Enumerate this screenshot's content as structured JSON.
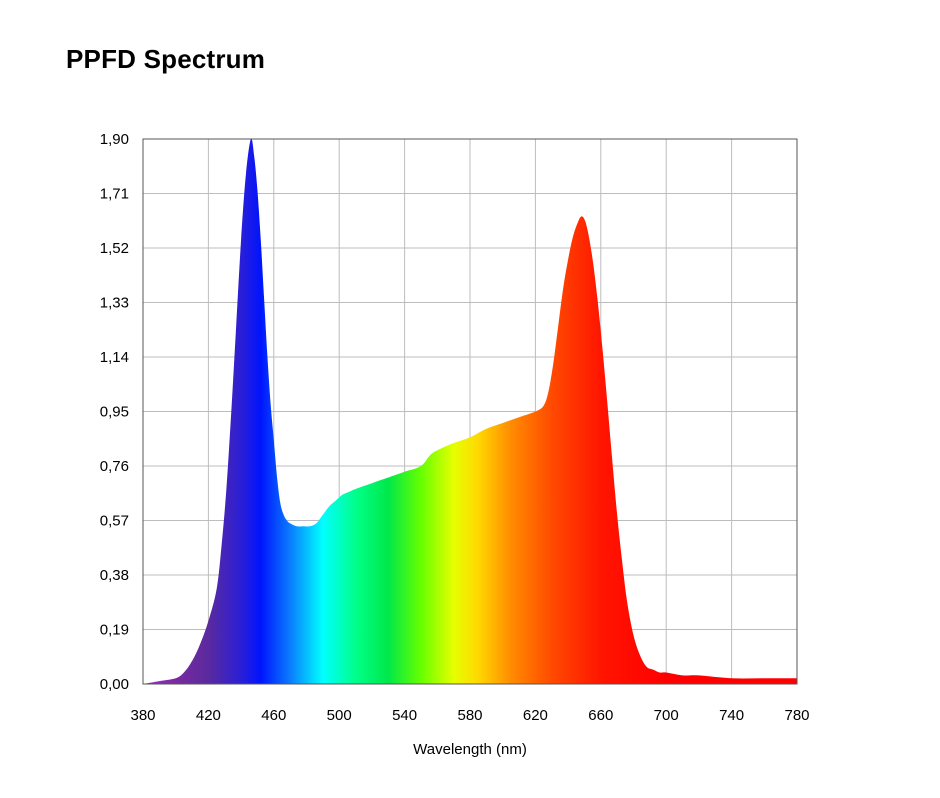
{
  "chart_data": {
    "type": "area",
    "title": "PPFD Spectrum",
    "xlabel": "Wavelength (nm)",
    "ylabel": "",
    "xlim": [
      380,
      780
    ],
    "ylim": [
      0,
      1.9
    ],
    "x_ticks": [
      380,
      420,
      460,
      500,
      540,
      580,
      620,
      660,
      700,
      740,
      780
    ],
    "x_tick_labels": [
      "380",
      "420",
      "460",
      "500",
      "540",
      "580",
      "620",
      "660",
      "700",
      "740",
      "780"
    ],
    "y_ticks": [
      0,
      0.19,
      0.38,
      0.57,
      0.76,
      0.95,
      1.14,
      1.33,
      1.52,
      1.71,
      1.9
    ],
    "y_tick_labels": [
      "0,00",
      "0,19",
      "0,38",
      "0,57",
      "0,76",
      "0,95",
      "1,14",
      "1,33",
      "1,52",
      "1,71",
      "1,90"
    ],
    "grid": true,
    "fill": "visible-spectrum-gradient",
    "series": [
      {
        "x": [
          380,
          390,
          400,
          405,
          410,
          415,
          420,
          425,
          428,
          431,
          434,
          437,
          440,
          443,
          446,
          448,
          450,
          452,
          454,
          456,
          458,
          460,
          462,
          464,
          466,
          468,
          470,
          474,
          478,
          482,
          486,
          490,
          494,
          498,
          502,
          506,
          510,
          520,
          530,
          540,
          550,
          556,
          562,
          570,
          580,
          590,
          600,
          610,
          620,
          625,
          628,
          631,
          634,
          637,
          640,
          643,
          646,
          648,
          650,
          652,
          655,
          658,
          661,
          664,
          667,
          670,
          673,
          676,
          680,
          684,
          688,
          692,
          696,
          700,
          710,
          720,
          740,
          760,
          780
        ],
        "y": [
          0.0,
          0.01,
          0.02,
          0.04,
          0.08,
          0.14,
          0.22,
          0.33,
          0.48,
          0.68,
          0.95,
          1.25,
          1.55,
          1.78,
          1.9,
          1.84,
          1.72,
          1.55,
          1.35,
          1.15,
          0.98,
          0.85,
          0.72,
          0.63,
          0.59,
          0.57,
          0.56,
          0.55,
          0.55,
          0.55,
          0.56,
          0.59,
          0.62,
          0.64,
          0.66,
          0.67,
          0.68,
          0.7,
          0.72,
          0.74,
          0.76,
          0.8,
          0.82,
          0.84,
          0.86,
          0.89,
          0.91,
          0.93,
          0.95,
          0.97,
          1.02,
          1.12,
          1.25,
          1.38,
          1.48,
          1.56,
          1.61,
          1.63,
          1.62,
          1.58,
          1.48,
          1.34,
          1.17,
          0.98,
          0.78,
          0.59,
          0.43,
          0.29,
          0.17,
          0.1,
          0.06,
          0.05,
          0.04,
          0.04,
          0.03,
          0.03,
          0.02,
          0.02,
          0.02
        ]
      }
    ],
    "colors": {
      "grid": "#bdbdbd",
      "axis": "#555555",
      "spectrum_stops": [
        {
          "nm": 380,
          "color": "#9b30c8"
        },
        {
          "nm": 400,
          "color": "#7a2aa0"
        },
        {
          "nm": 420,
          "color": "#5a2a9e"
        },
        {
          "nm": 440,
          "color": "#2a1fd6"
        },
        {
          "nm": 452,
          "color": "#0014ff"
        },
        {
          "nm": 470,
          "color": "#0a7cff"
        },
        {
          "nm": 490,
          "color": "#00ffff"
        },
        {
          "nm": 510,
          "color": "#00ff8a"
        },
        {
          "nm": 530,
          "color": "#00e84a"
        },
        {
          "nm": 550,
          "color": "#66ff00"
        },
        {
          "nm": 570,
          "color": "#e6ff00"
        },
        {
          "nm": 585,
          "color": "#ffd800"
        },
        {
          "nm": 605,
          "color": "#ff8c00"
        },
        {
          "nm": 630,
          "color": "#ff4a00"
        },
        {
          "nm": 660,
          "color": "#ff1500"
        },
        {
          "nm": 700,
          "color": "#ff0000"
        },
        {
          "nm": 780,
          "color": "#ff0000"
        }
      ]
    }
  }
}
